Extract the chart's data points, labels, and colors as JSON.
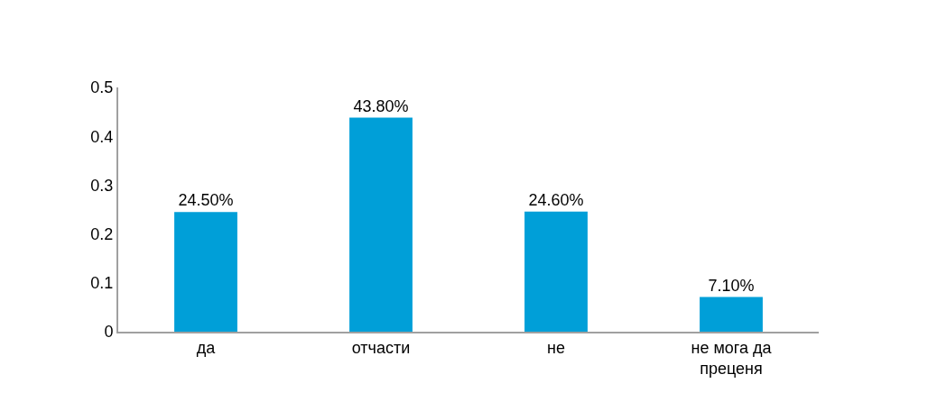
{
  "chart_data": {
    "type": "bar",
    "categories": [
      "да",
      "отчасти",
      "не",
      "не мога да преценя"
    ],
    "values": [
      0.245,
      0.438,
      0.246,
      0.071
    ],
    "value_labels": [
      "24.50%",
      "43.80%",
      "24.60%",
      "7.10%"
    ],
    "color": "#009fd8",
    "ylim": [
      0,
      0.5
    ],
    "yticks": [
      0,
      0.1,
      0.2,
      0.3,
      0.4,
      0.5
    ]
  }
}
